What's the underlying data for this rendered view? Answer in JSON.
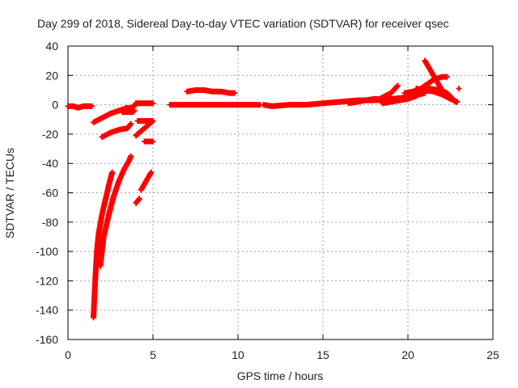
{
  "chart_data": {
    "type": "scatter",
    "title": "Day 299 of 2018, Sidereal Day-to-day VTEC variation (SDTVAR) for receiver qsec",
    "xlabel": "GPS time / hours",
    "ylabel": "SDTVAR / TECUs",
    "xlim": [
      0,
      25
    ],
    "ylim": [
      -160,
      40
    ],
    "xticks": [
      0,
      5,
      10,
      15,
      20,
      25
    ],
    "yticks": [
      40,
      20,
      0,
      -20,
      -40,
      -60,
      -80,
      -100,
      -120,
      -140,
      -160
    ],
    "grid": true,
    "marker": "plus",
    "series": [
      {
        "color": "#ff0000",
        "segments": [
          [
            [
              0.0,
              -1
            ],
            [
              0.3,
              -1
            ],
            [
              0.6,
              -2
            ],
            [
              0.9,
              -1
            ],
            [
              1.2,
              -1
            ],
            [
              1.4,
              -1
            ]
          ],
          [
            [
              1.5,
              -12
            ],
            [
              2.0,
              -9
            ],
            [
              2.5,
              -6
            ],
            [
              3.0,
              -4
            ],
            [
              3.5,
              -2
            ]
          ],
          [
            [
              1.5,
              -145
            ],
            [
              1.6,
              -120
            ],
            [
              1.7,
              -100
            ],
            [
              1.8,
              -88
            ],
            [
              2.0,
              -75
            ],
            [
              2.2,
              -65
            ],
            [
              2.4,
              -55
            ],
            [
              2.6,
              -46
            ]
          ],
          [
            [
              1.9,
              -110
            ],
            [
              2.1,
              -90
            ],
            [
              2.4,
              -75
            ],
            [
              2.7,
              -62
            ],
            [
              3.0,
              -52
            ],
            [
              3.3,
              -44
            ],
            [
              3.6,
              -38
            ],
            [
              3.7,
              -35
            ]
          ],
          [
            [
              2.0,
              -22
            ],
            [
              2.5,
              -19
            ],
            [
              3.0,
              -17
            ],
            [
              3.5,
              -16
            ],
            [
              3.7,
              -13
            ]
          ],
          [
            [
              3.0,
              -4
            ],
            [
              3.4,
              -3
            ],
            [
              3.7,
              -2
            ],
            [
              3.9,
              -1
            ],
            [
              4.0,
              1
            ]
          ],
          [
            [
              3.2,
              -5
            ],
            [
              3.6,
              -5
            ],
            [
              3.8,
              -5
            ],
            [
              3.9,
              -4
            ]
          ],
          [
            [
              4.0,
              1
            ],
            [
              4.3,
              1
            ],
            [
              4.6,
              1
            ],
            [
              5.0,
              1
            ]
          ],
          [
            [
              4.0,
              -21
            ],
            [
              4.3,
              -18
            ],
            [
              4.6,
              -15
            ],
            [
              5.0,
              -11
            ]
          ],
          [
            [
              4.1,
              -11
            ],
            [
              4.5,
              -11
            ],
            [
              4.9,
              -11
            ]
          ],
          [
            [
              4.5,
              -25
            ],
            [
              4.8,
              -25
            ],
            [
              5.0,
              -25
            ]
          ],
          [
            [
              4.0,
              -67
            ],
            [
              4.2,
              -64
            ]
          ],
          [
            [
              4.3,
              -58
            ],
            [
              4.6,
              -52
            ],
            [
              4.9,
              -46
            ]
          ],
          [
            [
              6.0,
              0
            ],
            [
              7.0,
              0
            ],
            [
              8.0,
              0
            ],
            [
              9.0,
              0
            ],
            [
              10.0,
              0
            ],
            [
              11.0,
              0
            ],
            [
              11.3,
              0
            ]
          ],
          [
            [
              7.0,
              9
            ],
            [
              7.5,
              10
            ],
            [
              8.0,
              10
            ],
            [
              8.5,
              9
            ],
            [
              9.0,
              9
            ],
            [
              9.5,
              8
            ],
            [
              9.8,
              8
            ]
          ],
          [
            [
              11.5,
              0
            ],
            [
              12.0,
              -1
            ],
            [
              13.0,
              0
            ],
            [
              14.0,
              0
            ],
            [
              15.0,
              1
            ],
            [
              16.0,
              2
            ],
            [
              17.0,
              3
            ],
            [
              18.0,
              3
            ],
            [
              19.0,
              4
            ],
            [
              20.0,
              5
            ],
            [
              21.0,
              8
            ]
          ],
          [
            [
              16.5,
              1
            ],
            [
              17.0,
              2
            ],
            [
              17.5,
              3
            ],
            [
              18.0,
              4
            ],
            [
              18.3,
              4
            ]
          ],
          [
            [
              18.2,
              3
            ],
            [
              18.5,
              5
            ],
            [
              19.0,
              8
            ],
            [
              19.4,
              13
            ]
          ],
          [
            [
              18.5,
              1
            ],
            [
              19.0,
              2
            ],
            [
              19.5,
              3
            ],
            [
              20.0,
              4
            ],
            [
              20.5,
              6
            ]
          ],
          [
            [
              19.5,
              4
            ],
            [
              20.0,
              6
            ],
            [
              20.5,
              9
            ],
            [
              21.0,
              13
            ],
            [
              21.5,
              17
            ],
            [
              22.0,
              19
            ],
            [
              22.3,
              19
            ]
          ],
          [
            [
              19.8,
              8
            ],
            [
              20.3,
              9
            ],
            [
              20.8,
              10
            ],
            [
              21.3,
              11
            ],
            [
              21.8,
              10
            ],
            [
              22.3,
              8
            ],
            [
              22.8,
              2
            ]
          ],
          [
            [
              21.0,
              30
            ],
            [
              21.3,
              24
            ],
            [
              21.6,
              18
            ],
            [
              22.0,
              10
            ],
            [
              22.4,
              6
            ],
            [
              22.8,
              2
            ]
          ],
          [
            [
              20.5,
              11
            ],
            [
              21.0,
              10
            ],
            [
              21.5,
              9
            ],
            [
              22.0,
              7
            ],
            [
              22.5,
              4
            ],
            [
              22.9,
              2
            ]
          ],
          [
            [
              23.0,
              11
            ]
          ]
        ]
      }
    ]
  }
}
